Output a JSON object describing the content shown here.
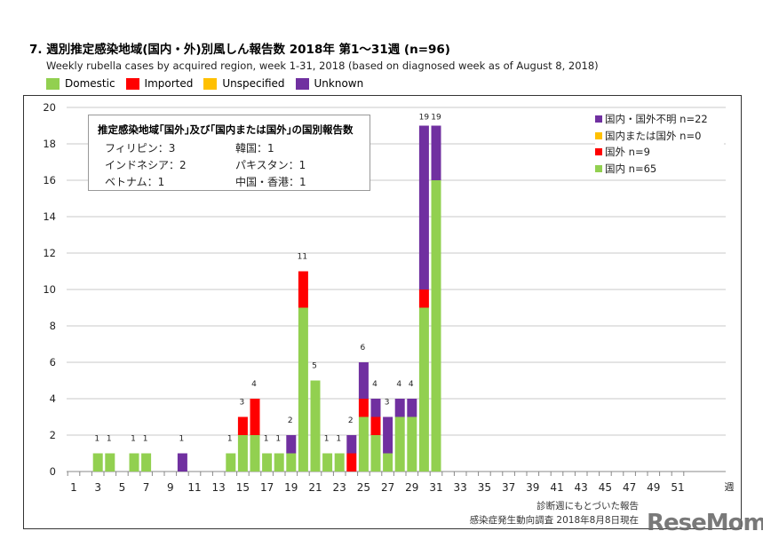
{
  "header": {
    "title": "7. 週別推定感染地域(国内・外)別風しん報告数  2018年 第1～31週 (n=96)",
    "subtitle": "Weekly rubella cases by acquired region, week 1-31, 2018 (based on diagnosed week as of August 8, 2018)"
  },
  "top_legend": [
    {
      "label": "Domestic",
      "color": "#92d050"
    },
    {
      "label": "Imported",
      "color": "#ff0000"
    },
    {
      "label": "Unspecified",
      "color": "#ffc000"
    },
    {
      "label": "Unknown",
      "color": "#7030a0"
    }
  ],
  "country_box": {
    "title": "推定感染地域｢国外｣及び｢国内または国外｣の国別報告数",
    "left": [
      "フィリピン：3",
      "インドネシア：2",
      "ベトナム：1"
    ],
    "right": [
      "韓国：1",
      "パキスタン：1",
      "中国・香港：1"
    ]
  },
  "right_legend": [
    {
      "label": "国内・国外不明 n=22",
      "color": "#7030a0"
    },
    {
      "label": "国内または国外 n=0",
      "color": "#ffc000"
    },
    {
      "label": "国外 n=9",
      "color": "#ff0000"
    },
    {
      "label": "国内 n=65",
      "color": "#92d050"
    }
  ],
  "footnotes": [
    "診断週にもとづいた報告",
    "感染症発生動向調査 2018年8月8日現在"
  ],
  "logo": "ReseMom",
  "chart_data": {
    "type": "bar",
    "stacked": true,
    "xlabel": "週",
    "ylabel": "",
    "ylim": [
      0,
      20
    ],
    "yticks": [
      0,
      2,
      4,
      6,
      8,
      10,
      12,
      14,
      16,
      18,
      20
    ],
    "xlim": [
      1,
      52
    ],
    "xtick_labels": [
      1,
      3,
      5,
      7,
      9,
      11,
      13,
      15,
      17,
      19,
      21,
      23,
      25,
      27,
      29,
      31,
      33,
      35,
      37,
      39,
      41,
      43,
      45,
      47,
      49,
      51
    ],
    "grid": true,
    "weeks": [
      3,
      4,
      6,
      7,
      10,
      14,
      15,
      16,
      17,
      18,
      19,
      20,
      21,
      22,
      23,
      24,
      25,
      26,
      27,
      28,
      29,
      30,
      31
    ],
    "series": [
      {
        "name": "国内",
        "color": "#92d050",
        "values": [
          1,
          1,
          1,
          1,
          0,
          1,
          2,
          2,
          1,
          1,
          1,
          9,
          5,
          1,
          1,
          0,
          3,
          2,
          1,
          3,
          3,
          9,
          16
        ]
      },
      {
        "name": "国外",
        "color": "#ff0000",
        "values": [
          0,
          0,
          0,
          0,
          0,
          0,
          1,
          2,
          0,
          0,
          0,
          2,
          0,
          0,
          0,
          1,
          1,
          1,
          0,
          0,
          0,
          1,
          0
        ]
      },
      {
        "name": "国内または国外",
        "color": "#ffc000",
        "values": [
          0,
          0,
          0,
          0,
          0,
          0,
          0,
          0,
          0,
          0,
          0,
          0,
          0,
          0,
          0,
          0,
          0,
          0,
          0,
          0,
          0,
          0,
          0
        ]
      },
      {
        "name": "国内・国外不明",
        "color": "#7030a0",
        "values": [
          0,
          0,
          0,
          0,
          1,
          0,
          0,
          0,
          0,
          0,
          1,
          0,
          0,
          0,
          0,
          1,
          2,
          1,
          2,
          1,
          1,
          9,
          3
        ]
      }
    ],
    "totals": [
      1,
      1,
      1,
      1,
      1,
      1,
      3,
      4,
      1,
      1,
      2,
      11,
      5,
      1,
      1,
      2,
      6,
      4,
      3,
      4,
      4,
      19,
      19
    ]
  }
}
